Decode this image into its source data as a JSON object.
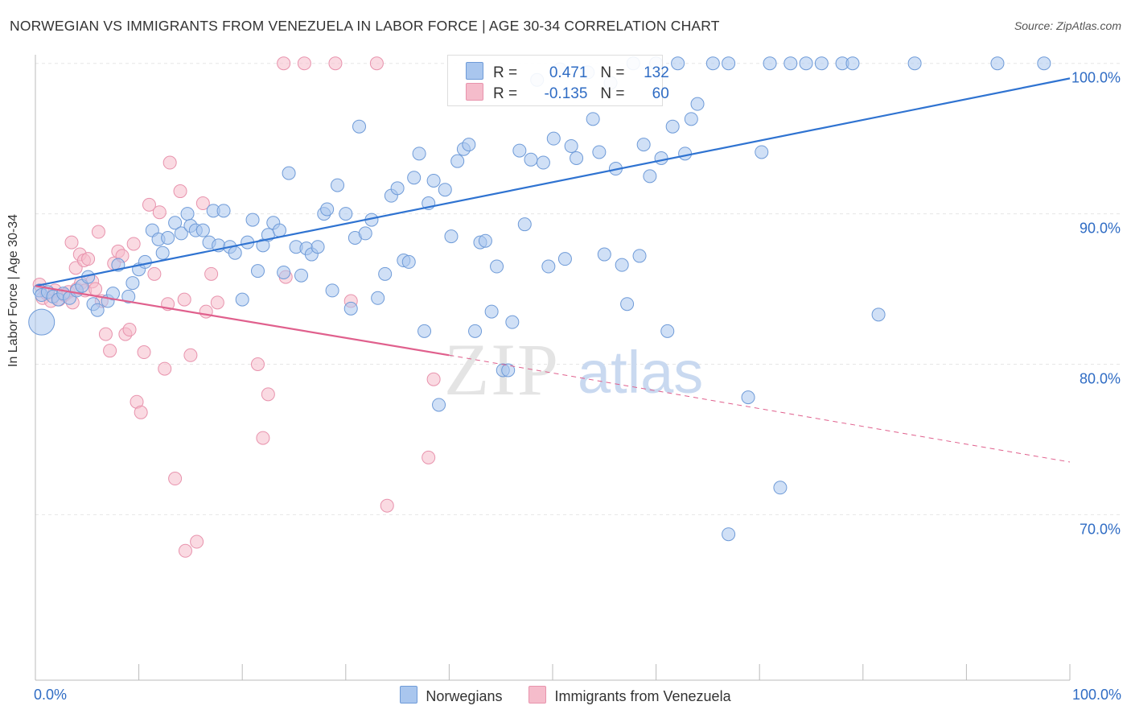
{
  "title": "NORWEGIAN VS IMMIGRANTS FROM VENEZUELA IN LABOR FORCE | AGE 30-34 CORRELATION CHART",
  "source": "Source: ZipAtlas.com",
  "watermark": {
    "zip": "ZIP",
    "atlas": "atlas"
  },
  "legend_top": {
    "rows": [
      {
        "r_label": "R =",
        "r_value": "0.471",
        "n_label": "N =",
        "n_value": "132"
      },
      {
        "r_label": "R =",
        "r_value": "-0.135",
        "n_label": "N =",
        "n_value": "60"
      }
    ]
  },
  "legend_bottom": {
    "items": [
      "Norwegians",
      "Immigrants from Venezuela"
    ]
  },
  "colors": {
    "blue_fill": "#a9c6ee",
    "blue_stroke": "#6f9bd8",
    "blue_line": "#2f73d1",
    "pink_fill": "#f5bccb",
    "pink_stroke": "#e893ad",
    "pink_line": "#e0608d",
    "axis_text": "#2f6cc4",
    "grid": "#e6e6e6"
  },
  "chart_data": {
    "type": "scatter",
    "title": "NORWEGIAN VS IMMIGRANTS FROM VENEZUELA IN LABOR FORCE | AGE 30-34 CORRELATION CHART",
    "xlabel": "",
    "ylabel": "In Labor Force | Age 30-34",
    "x_tick_labels": [
      "0.0%",
      "100.0%"
    ],
    "y_tick_labels": [
      "70.0%",
      "80.0%",
      "90.0%",
      "100.0%"
    ],
    "y_ticks": [
      70,
      80,
      90,
      100
    ],
    "xlim": [
      0,
      100
    ],
    "ylim": [
      59,
      101
    ],
    "series": [
      {
        "name": "Norwegians",
        "trend": {
          "x0": 0,
          "y0": 85.2,
          "x1": 100,
          "y1": 99.0
        },
        "points": [
          [
            0.4,
            84.9
          ],
          [
            0.6,
            84.6
          ],
          [
            1.2,
            84.8
          ],
          [
            1.7,
            84.5
          ],
          [
            2.2,
            84.3
          ],
          [
            2.7,
            84.7
          ],
          [
            3.3,
            84.4
          ],
          [
            4.0,
            84.9
          ],
          [
            4.5,
            85.2
          ],
          [
            5.1,
            85.8
          ],
          [
            5.6,
            84.0
          ],
          [
            6.0,
            83.6
          ],
          [
            7.0,
            84.2
          ],
          [
            7.5,
            84.7
          ],
          [
            8.0,
            86.6
          ],
          [
            9.0,
            84.5
          ],
          [
            9.4,
            85.4
          ],
          [
            10.0,
            86.3
          ],
          [
            10.6,
            86.8
          ],
          [
            11.3,
            88.9
          ],
          [
            11.9,
            88.3
          ],
          [
            12.3,
            87.4
          ],
          [
            12.8,
            88.4
          ],
          [
            13.5,
            89.4
          ],
          [
            14.1,
            88.7
          ],
          [
            14.7,
            90.0
          ],
          [
            15.0,
            89.2
          ],
          [
            15.5,
            88.9
          ],
          [
            16.2,
            88.9
          ],
          [
            16.8,
            88.1
          ],
          [
            17.2,
            90.2
          ],
          [
            17.7,
            87.9
          ],
          [
            18.2,
            90.2
          ],
          [
            18.8,
            87.8
          ],
          [
            19.3,
            87.4
          ],
          [
            20.0,
            84.3
          ],
          [
            20.5,
            88.1
          ],
          [
            21.0,
            89.6
          ],
          [
            21.5,
            86.2
          ],
          [
            22.0,
            87.9
          ],
          [
            22.5,
            88.6
          ],
          [
            23.0,
            89.4
          ],
          [
            23.6,
            88.9
          ],
          [
            24.0,
            86.1
          ],
          [
            24.5,
            92.7
          ],
          [
            25.2,
            87.8
          ],
          [
            25.7,
            85.9
          ],
          [
            26.2,
            87.7
          ],
          [
            26.7,
            87.3
          ],
          [
            27.3,
            87.8
          ],
          [
            27.9,
            90.0
          ],
          [
            28.2,
            90.3
          ],
          [
            28.7,
            84.9
          ],
          [
            29.2,
            91.9
          ],
          [
            30.0,
            90.0
          ],
          [
            30.5,
            83.7
          ],
          [
            30.9,
            88.4
          ],
          [
            31.3,
            95.8
          ],
          [
            31.9,
            88.7
          ],
          [
            32.5,
            89.6
          ],
          [
            33.1,
            84.4
          ],
          [
            33.8,
            86.0
          ],
          [
            34.4,
            91.2
          ],
          [
            35.0,
            91.7
          ],
          [
            35.6,
            86.9
          ],
          [
            36.1,
            86.8
          ],
          [
            36.6,
            92.4
          ],
          [
            37.1,
            94.0
          ],
          [
            37.6,
            82.2
          ],
          [
            38.0,
            90.7
          ],
          [
            38.5,
            92.2
          ],
          [
            39.0,
            77.3
          ],
          [
            39.6,
            91.6
          ],
          [
            40.2,
            88.5
          ],
          [
            40.8,
            93.5
          ],
          [
            41.4,
            94.3
          ],
          [
            41.9,
            94.6
          ],
          [
            42.5,
            82.2
          ],
          [
            43.0,
            88.1
          ],
          [
            43.5,
            88.2
          ],
          [
            44.1,
            83.5
          ],
          [
            44.6,
            86.5
          ],
          [
            45.2,
            79.6
          ],
          [
            45.7,
            79.6
          ],
          [
            46.1,
            82.8
          ],
          [
            46.8,
            94.2
          ],
          [
            47.3,
            89.3
          ],
          [
            47.9,
            93.6
          ],
          [
            48.5,
            98.9
          ],
          [
            49.1,
            93.4
          ],
          [
            49.6,
            86.5
          ],
          [
            50.1,
            95.0
          ],
          [
            50.7,
            99.6
          ],
          [
            51.2,
            87.0
          ],
          [
            51.8,
            94.5
          ],
          [
            52.3,
            93.7
          ],
          [
            53.4,
            99.4
          ],
          [
            53.9,
            96.3
          ],
          [
            54.5,
            94.1
          ],
          [
            55.0,
            87.3
          ],
          [
            55.6,
            98.7
          ],
          [
            56.1,
            93.0
          ],
          [
            56.7,
            86.6
          ],
          [
            57.2,
            84.0
          ],
          [
            57.8,
            100.0
          ],
          [
            58.4,
            87.2
          ],
          [
            58.8,
            94.6
          ],
          [
            59.4,
            92.5
          ],
          [
            60.0,
            100.0
          ],
          [
            60.5,
            93.7
          ],
          [
            61.1,
            82.2
          ],
          [
            61.6,
            95.8
          ],
          [
            62.1,
            100.0
          ],
          [
            62.8,
            94.0
          ],
          [
            63.4,
            96.3
          ],
          [
            64.0,
            97.3
          ],
          [
            65.5,
            100.0
          ],
          [
            67.0,
            100.0
          ],
          [
            68.9,
            77.8
          ],
          [
            70.2,
            94.1
          ],
          [
            71.0,
            100.0
          ],
          [
            72.0,
            71.8
          ],
          [
            73.0,
            100.0
          ],
          [
            74.5,
            100.0
          ],
          [
            76.0,
            100.0
          ],
          [
            78.0,
            100.0
          ],
          [
            79.0,
            100.0
          ],
          [
            81.5,
            83.3
          ],
          [
            85.0,
            100.0
          ],
          [
            93.0,
            100.0
          ],
          [
            97.5,
            100.0
          ],
          [
            67.0,
            68.7
          ]
        ]
      },
      {
        "name": "Immigrants from Venezuela",
        "trend": {
          "x0": 0,
          "y0": 85.2,
          "x1": 40,
          "y1": 80.6
        },
        "trend_dashed": {
          "x0": 40,
          "y0": 80.6,
          "x1": 100,
          "y1": 73.5
        },
        "points": [
          [
            0.4,
            85.3
          ],
          [
            0.7,
            84.4
          ],
          [
            1.1,
            84.7
          ],
          [
            1.5,
            84.2
          ],
          [
            1.9,
            84.9
          ],
          [
            2.3,
            84.3
          ],
          [
            2.8,
            84.6
          ],
          [
            3.2,
            84.8
          ],
          [
            3.6,
            84.1
          ],
          [
            4.0,
            85.0
          ],
          [
            4.4,
            85.4
          ],
          [
            4.8,
            84.9
          ],
          [
            3.5,
            88.1
          ],
          [
            3.9,
            86.4
          ],
          [
            4.3,
            87.3
          ],
          [
            4.7,
            86.9
          ],
          [
            5.1,
            87.0
          ],
          [
            5.5,
            85.5
          ],
          [
            5.8,
            85.0
          ],
          [
            6.1,
            88.8
          ],
          [
            6.4,
            84.2
          ],
          [
            6.8,
            82.0
          ],
          [
            7.2,
            80.9
          ],
          [
            7.6,
            86.7
          ],
          [
            8.0,
            87.5
          ],
          [
            8.4,
            87.2
          ],
          [
            8.7,
            82.0
          ],
          [
            9.1,
            82.3
          ],
          [
            9.5,
            88.0
          ],
          [
            9.8,
            77.5
          ],
          [
            10.2,
            76.8
          ],
          [
            10.5,
            80.8
          ],
          [
            11.0,
            90.6
          ],
          [
            11.5,
            86.0
          ],
          [
            12.0,
            90.1
          ],
          [
            12.5,
            79.7
          ],
          [
            13.0,
            93.4
          ],
          [
            13.5,
            72.4
          ],
          [
            14.0,
            91.5
          ],
          [
            14.5,
            67.6
          ],
          [
            15.0,
            80.6
          ],
          [
            15.6,
            68.2
          ],
          [
            16.2,
            90.7
          ],
          [
            16.5,
            83.5
          ],
          [
            17.0,
            86.0
          ],
          [
            17.6,
            84.1
          ],
          [
            12.8,
            84.0
          ],
          [
            14.4,
            84.3
          ],
          [
            21.5,
            80.0
          ],
          [
            22.0,
            75.1
          ],
          [
            22.5,
            78.0
          ],
          [
            24.0,
            100.0
          ],
          [
            26.0,
            100.0
          ],
          [
            29.0,
            100.0
          ],
          [
            33.0,
            100.0
          ],
          [
            24.2,
            85.8
          ],
          [
            30.5,
            84.2
          ],
          [
            34.0,
            70.6
          ],
          [
            38.5,
            79.0
          ],
          [
            38.0,
            73.8
          ]
        ]
      }
    ]
  }
}
